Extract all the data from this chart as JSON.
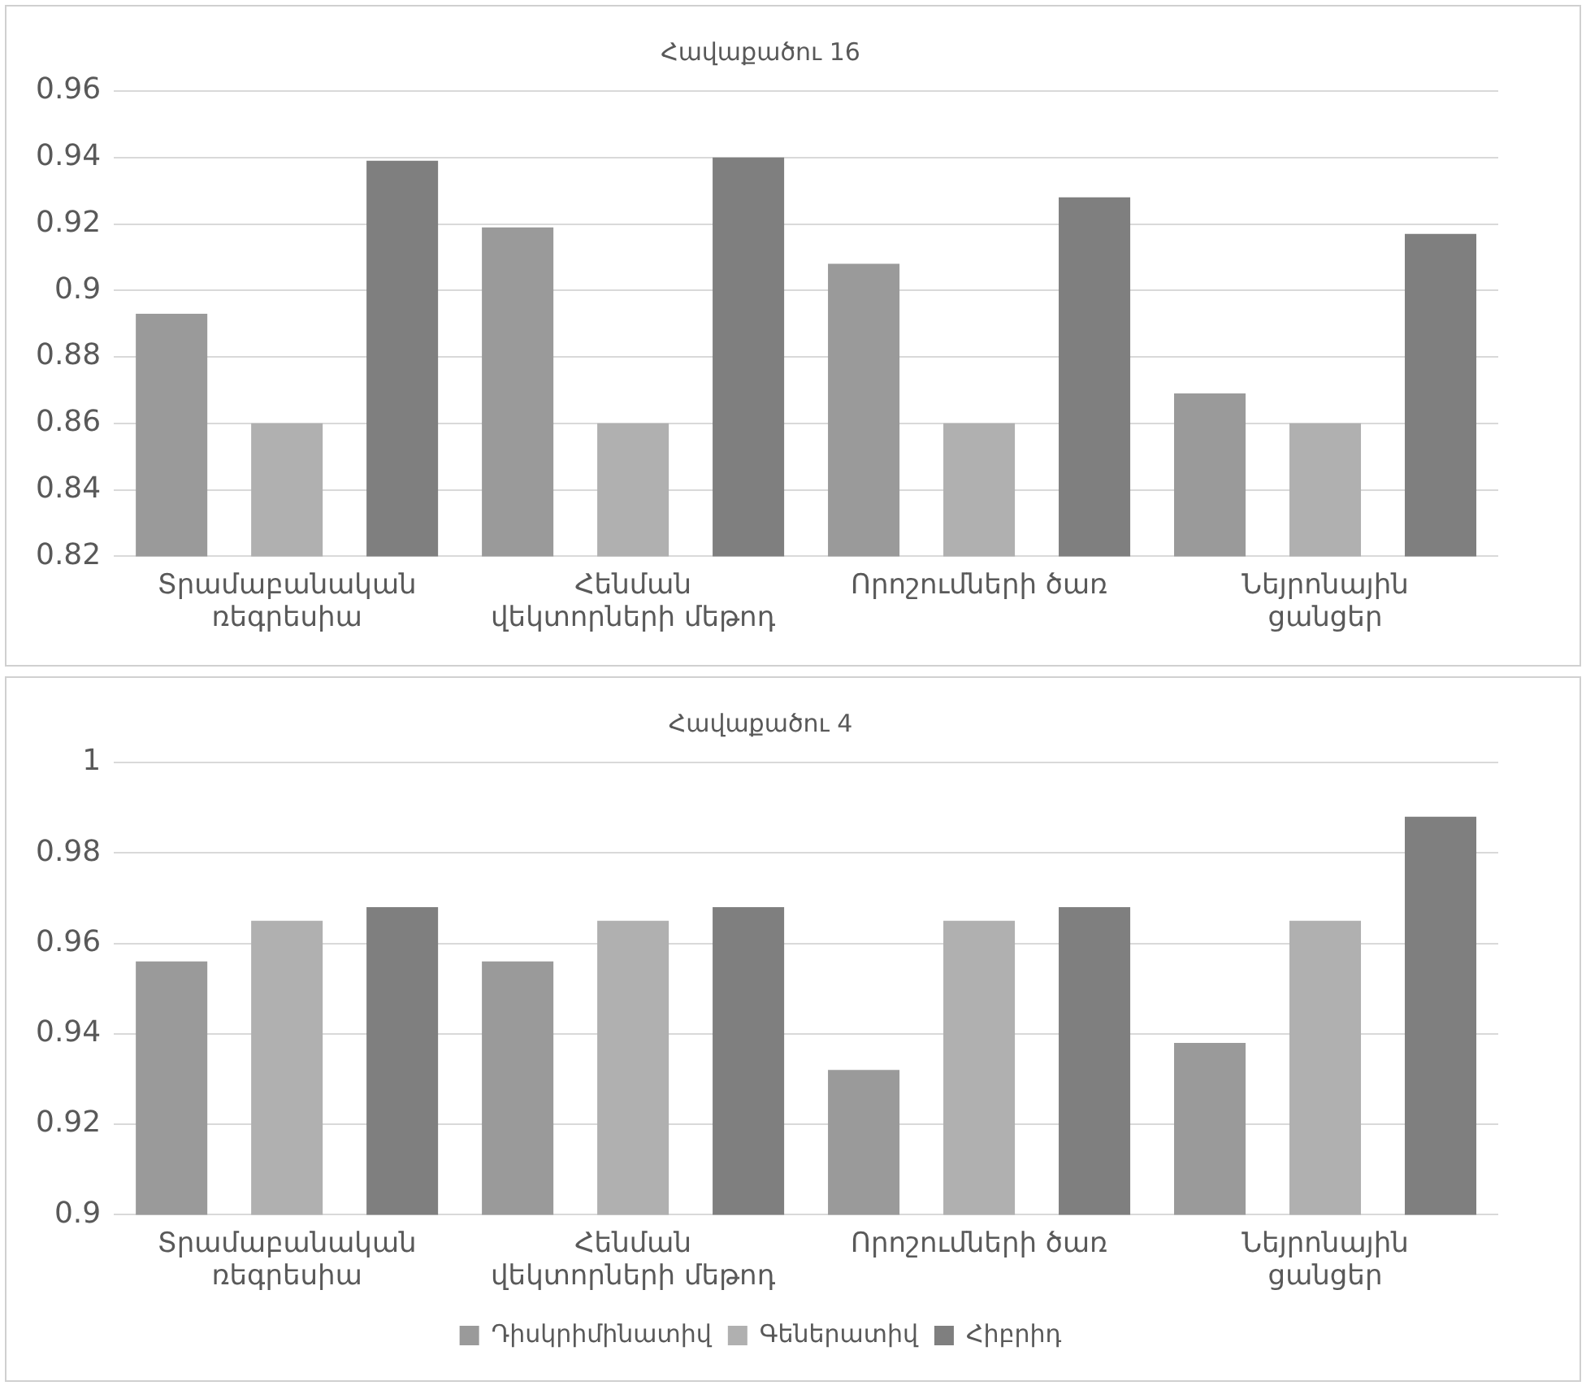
{
  "chart_data": [
    {
      "type": "bar",
      "title": "Հավաքածու 16",
      "categories": [
        "Տրամաբանական ռեգրեսիա",
        "Հենման վեկտորների մեթոդ",
        "Որոշումների ծառ",
        "Նեյրոնային ցանցեր"
      ],
      "series": [
        {
          "color": "#9a9a9a",
          "values": [
            0.893,
            0.919,
            0.908,
            0.869
          ]
        },
        {
          "color": "#b0b0b0",
          "values": [
            0.86,
            0.86,
            0.86,
            0.86
          ]
        },
        {
          "color": "#7f7f7f",
          "values": [
            0.939,
            0.94,
            0.928,
            0.917
          ]
        }
      ],
      "ylim": [
        0.82,
        0.96
      ],
      "yticks": [
        0.82,
        0.84,
        0.86,
        0.88,
        0.9,
        0.92,
        0.94,
        0.96
      ],
      "grid": "y",
      "legend": false
    },
    {
      "type": "bar",
      "title": "Հավաքածու 4",
      "categories": [
        "Տրամաբանական ռեգրեսիա",
        "Հենման վեկտորների մեթոդ",
        "Որոշումների ծառ",
        "Նեյրոնային ցանցեր"
      ],
      "series": [
        {
          "name": "Դիսկրիմինատիվ",
          "color": "#9a9a9a",
          "values": [
            0.956,
            0.956,
            0.932,
            0.938
          ]
        },
        {
          "name": "Գեներատիվ",
          "color": "#b0b0b0",
          "values": [
            0.965,
            0.965,
            0.965,
            0.965
          ]
        },
        {
          "name": "Հիբրիդ",
          "color": "#7f7f7f",
          "values": [
            0.968,
            0.968,
            0.968,
            0.988
          ]
        }
      ],
      "ylim": [
        0.9,
        1
      ],
      "yticks": [
        0.9,
        0.92,
        0.94,
        0.96,
        0.98,
        1
      ],
      "grid": "y",
      "legend": "bottom"
    }
  ]
}
